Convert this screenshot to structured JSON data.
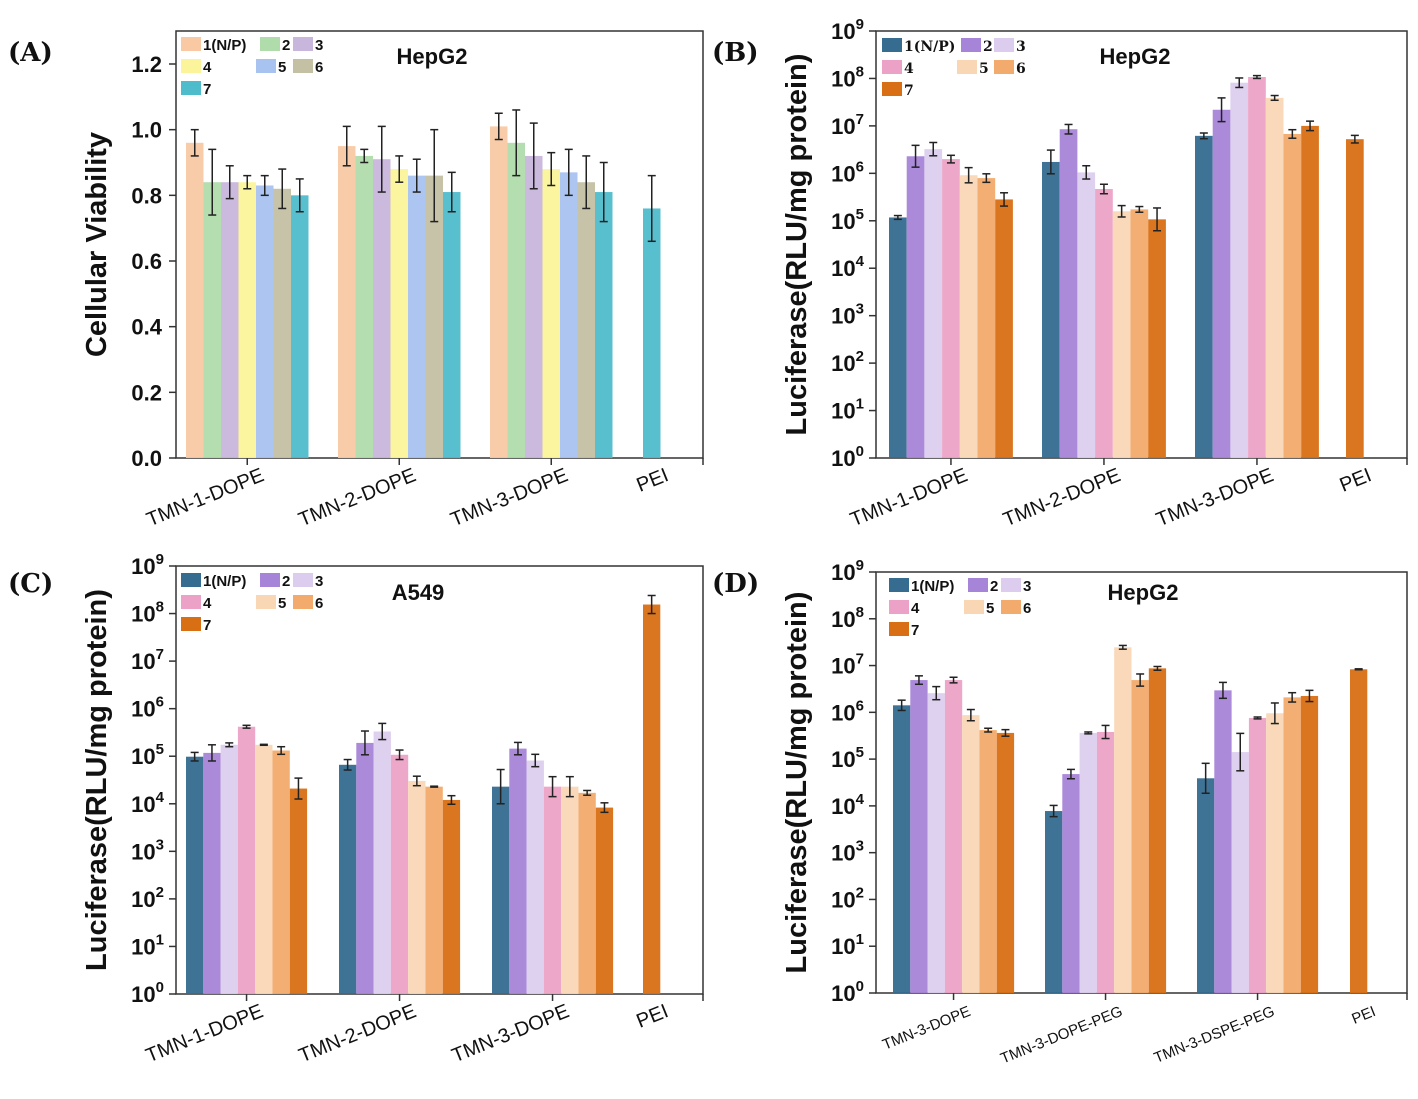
{
  "figure": {
    "panel_labels": [
      "(A)",
      "(B)",
      "(C)",
      "(D)"
    ]
  },
  "chart_data": [
    {
      "panel": "(A)",
      "type": "bar",
      "title": "HepG2",
      "xlabel": "",
      "ylabel": "Cellular Viability",
      "yscale": "linear",
      "ylim": [
        0,
        1.28
      ],
      "yticks": [
        0.0,
        0.2,
        0.4,
        0.6,
        0.8,
        1.0,
        1.2
      ],
      "ytick_labels": [
        "0.0",
        "0.2",
        "0.4",
        "0.6",
        "0.8",
        "1.0",
        "1.2"
      ],
      "legend": {
        "placement": "top-left",
        "title_entry": "1(N/P)",
        "entries": [
          "1(N/P)",
          "2",
          "3",
          "4",
          "5",
          "6",
          "7"
        ],
        "colors": [
          "#f9c9a4",
          "#b0dcab",
          "#c8b6dc",
          "#fbf49a",
          "#a9c3f0",
          "#c4c0a4",
          "#4fbccb"
        ]
      },
      "categories": [
        "TMN-1-DOPE",
        "TMN-2-DOPE",
        "TMN-3-DOPE",
        "PEI"
      ],
      "series": [
        {
          "name": "1(N/P)",
          "values": [
            0.96,
            0.95,
            1.01,
            null
          ],
          "errors": [
            0.04,
            0.06,
            0.04,
            null
          ]
        },
        {
          "name": "2",
          "values": [
            0.84,
            0.92,
            0.96,
            null
          ],
          "errors": [
            0.1,
            0.02,
            0.1,
            null
          ]
        },
        {
          "name": "3",
          "values": [
            0.84,
            0.91,
            0.92,
            null
          ],
          "errors": [
            0.05,
            0.1,
            0.1,
            null
          ]
        },
        {
          "name": "4",
          "values": [
            0.84,
            0.88,
            0.88,
            null
          ],
          "errors": [
            0.02,
            0.04,
            0.05,
            null
          ]
        },
        {
          "name": "5",
          "values": [
            0.83,
            0.86,
            0.87,
            null
          ],
          "errors": [
            0.03,
            0.05,
            0.07,
            null
          ]
        },
        {
          "name": "6",
          "values": [
            0.82,
            0.86,
            0.84,
            null
          ],
          "errors": [
            0.06,
            0.14,
            0.08,
            null
          ]
        },
        {
          "name": "7",
          "values": [
            0.8,
            0.81,
            0.81,
            0.76
          ],
          "errors": [
            0.05,
            0.06,
            0.09,
            0.1
          ]
        }
      ],
      "grid": false
    },
    {
      "panel": "(B)",
      "type": "bar",
      "title": "HepG2",
      "xlabel": "",
      "ylabel": "Luciferase(RLU/mg protein)",
      "yscale": "log",
      "ylim": [
        1,
        1000000000
      ],
      "ytick_exponents": [
        0,
        1,
        2,
        3,
        4,
        5,
        6,
        7,
        8,
        9
      ],
      "ytick_base": "10",
      "legend": {
        "placement": "top-left",
        "entries": [
          "1(N/P)",
          "2",
          "3",
          "4",
          "5",
          "6",
          "7"
        ],
        "colors": [
          "#356c8f",
          "#a684d8",
          "#dccdee",
          "#eca2c6",
          "#f9d7b5",
          "#f2ab6c",
          "#d96f14"
        ]
      },
      "categories": [
        "TMN-1-DOPE",
        "TMN-2-DOPE",
        "TMN-3-DOPE",
        "PEI"
      ],
      "series": [
        {
          "name": "1(N/P)",
          "log10_values": [
            5.07,
            6.24,
            6.79,
            null
          ],
          "log10_errors": [
            0.04,
            0.25,
            0.06,
            null
          ]
        },
        {
          "name": "2",
          "log10_values": [
            6.36,
            6.93,
            7.34,
            null
          ],
          "log10_errors": [
            0.23,
            0.1,
            0.25,
            null
          ]
        },
        {
          "name": "3",
          "log10_values": [
            6.51,
            6.02,
            7.91,
            null
          ],
          "log10_errors": [
            0.14,
            0.14,
            0.1,
            null
          ]
        },
        {
          "name": "4",
          "log10_values": [
            6.3,
            5.67,
            8.03,
            null
          ],
          "log10_errors": [
            0.08,
            0.1,
            0.03,
            null
          ]
        },
        {
          "name": "5",
          "log10_values": [
            5.96,
            5.2,
            7.59,
            null
          ],
          "log10_errors": [
            0.16,
            0.12,
            0.05,
            null
          ]
        },
        {
          "name": "6",
          "log10_values": [
            5.9,
            5.24,
            6.83,
            null
          ],
          "log10_errors": [
            0.09,
            0.06,
            0.09,
            null
          ]
        },
        {
          "name": "7",
          "log10_values": [
            5.45,
            5.03,
            7.0,
            6.72
          ],
          "log10_errors": [
            0.14,
            0.24,
            0.1,
            0.08
          ]
        }
      ],
      "grid": false
    },
    {
      "panel": "(C)",
      "type": "bar",
      "title": "A549",
      "xlabel": "",
      "ylabel": "Luciferase(RLU/mg protein)",
      "yscale": "log",
      "ylim": [
        1,
        1000000000
      ],
      "ytick_exponents": [
        0,
        1,
        2,
        3,
        4,
        5,
        6,
        7,
        8,
        9
      ],
      "ytick_base": "10",
      "legend": {
        "placement": "top-left",
        "entries": [
          "1(N/P)",
          "2",
          "3",
          "4",
          "5",
          "6",
          "7"
        ],
        "colors": [
          "#356c8f",
          "#a684d8",
          "#dccdee",
          "#eca2c6",
          "#f9d7b5",
          "#f2ab6c",
          "#d96f14"
        ]
      },
      "categories": [
        "TMN-1-DOPE",
        "TMN-2-DOPE",
        "TMN-3-DOPE",
        "PEI"
      ],
      "series": [
        {
          "name": "1(N/P)",
          "log10_values": [
            4.99,
            4.82,
            4.36,
            null
          ],
          "log10_errors": [
            0.09,
            0.11,
            0.36,
            null
          ]
        },
        {
          "name": "2",
          "log10_values": [
            5.07,
            5.28,
            5.16,
            null
          ],
          "log10_errors": [
            0.17,
            0.25,
            0.13,
            null
          ]
        },
        {
          "name": "3",
          "log10_values": [
            5.24,
            5.52,
            4.91,
            null
          ],
          "log10_errors": [
            0.04,
            0.17,
            0.13,
            null
          ]
        },
        {
          "name": "4",
          "log10_values": [
            5.62,
            5.03,
            4.36,
            null
          ],
          "log10_errors": [
            0.03,
            0.1,
            0.21,
            null
          ]
        },
        {
          "name": "5",
          "log10_values": [
            5.24,
            4.48,
            4.36,
            null
          ],
          "log10_errors": [
            0.01,
            0.1,
            0.21,
            null
          ]
        },
        {
          "name": "6",
          "log10_values": [
            5.12,
            4.36,
            4.23,
            null
          ],
          "log10_errors": [
            0.08,
            0.01,
            0.05,
            null
          ]
        },
        {
          "name": "7",
          "log10_values": [
            4.32,
            4.08,
            3.92,
            8.19
          ],
          "log10_errors": [
            0.22,
            0.09,
            0.1,
            0.19
          ]
        }
      ],
      "grid": false
    },
    {
      "panel": "(D)",
      "type": "bar",
      "title": "HepG2",
      "xlabel": "",
      "ylabel": "Luciferase(RLU/mg protein)",
      "yscale": "log",
      "ylim": [
        1,
        1000000000
      ],
      "ytick_exponents": [
        0,
        1,
        2,
        3,
        4,
        5,
        6,
        7,
        8,
        9
      ],
      "ytick_base": "10",
      "legend": {
        "placement": "top-left",
        "entries": [
          "1(N/P)",
          "2",
          "3",
          "4",
          "5",
          "6",
          "7"
        ],
        "colors": [
          "#356c8f",
          "#a684d8",
          "#dccdee",
          "#eca2c6",
          "#f9d7b5",
          "#f2ab6c",
          "#d96f14"
        ]
      },
      "categories": [
        "TMN-3-DOPE",
        "TMN-3-DOPE-PEG",
        "TMN-3-DSPE-PEG",
        "PEI"
      ],
      "series": [
        {
          "name": "1(N/P)",
          "log10_values": [
            6.15,
            3.89,
            4.59,
            null
          ],
          "log10_errors": [
            0.11,
            0.12,
            0.32,
            null
          ]
        },
        {
          "name": "2",
          "log10_values": [
            6.69,
            4.68,
            6.47,
            null
          ],
          "log10_errors": [
            0.09,
            0.1,
            0.17,
            null
          ]
        },
        {
          "name": "3",
          "log10_values": [
            6.41,
            5.56,
            5.15,
            null
          ],
          "log10_errors": [
            0.14,
            0.02,
            0.4,
            null
          ]
        },
        {
          "name": "4",
          "log10_values": [
            6.69,
            5.58,
            5.88,
            null
          ],
          "log10_errors": [
            0.06,
            0.14,
            0.02,
            null
          ]
        },
        {
          "name": "5",
          "log10_values": [
            5.94,
            7.39,
            5.98,
            null
          ],
          "log10_errors": [
            0.12,
            0.04,
            0.22,
            null
          ]
        },
        {
          "name": "6",
          "log10_values": [
            5.62,
            6.69,
            6.32,
            null
          ],
          "log10_errors": [
            0.04,
            0.13,
            0.1,
            null
          ]
        },
        {
          "name": "7",
          "log10_values": [
            5.56,
            6.94,
            6.35,
            6.92
          ],
          "log10_errors": [
            0.07,
            0.04,
            0.12,
            0.01
          ]
        }
      ],
      "grid": false
    }
  ]
}
